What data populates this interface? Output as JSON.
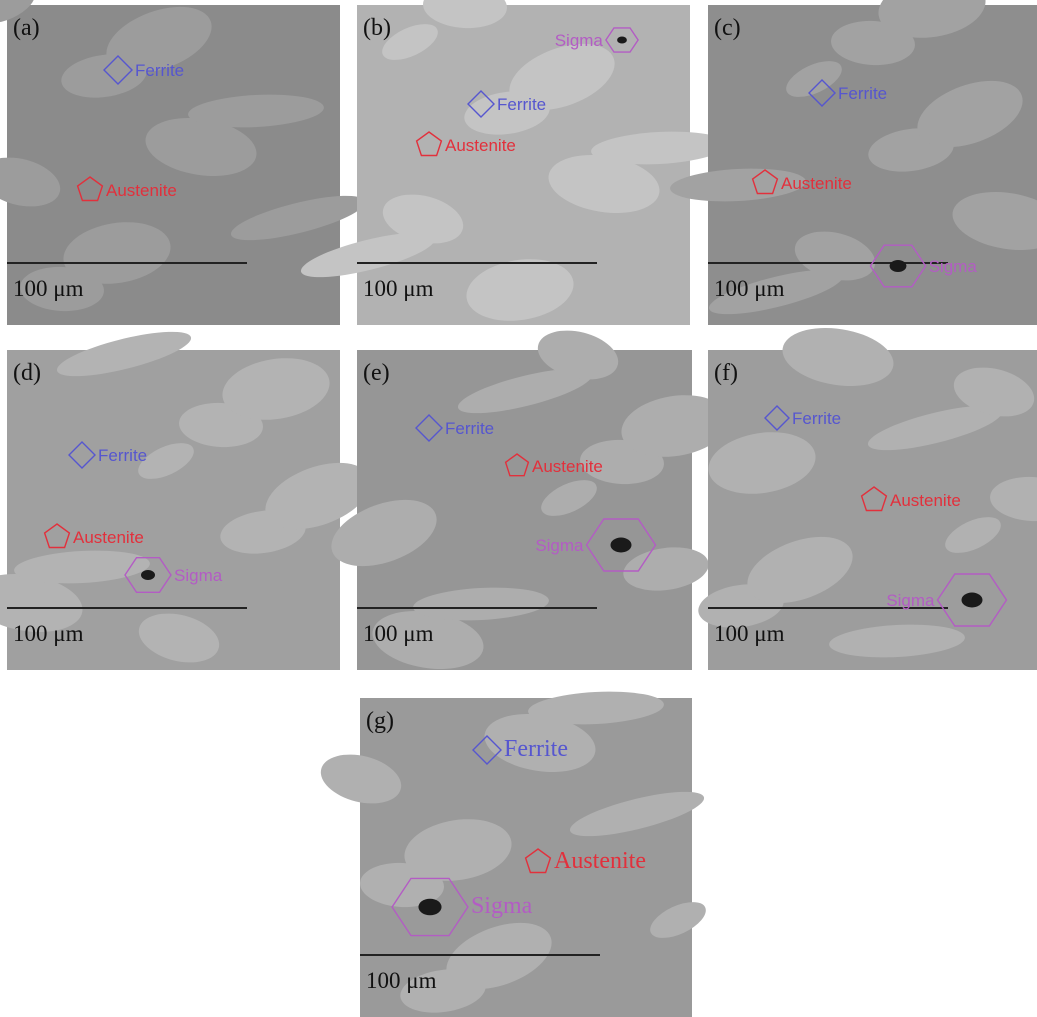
{
  "panels": [
    {
      "label": "(a)",
      "scale_bar": "100 μm",
      "phases": [
        {
          "name": "Ferrite"
        },
        {
          "name": "Austenite"
        }
      ]
    },
    {
      "label": "(b)",
      "scale_bar": "100 μm",
      "phases": [
        {
          "name": "Sigma"
        },
        {
          "name": "Ferrite"
        },
        {
          "name": "Austenite"
        }
      ]
    },
    {
      "label": "(c)",
      "scale_bar": "100 μm",
      "phases": [
        {
          "name": "Ferrite"
        },
        {
          "name": "Austenite"
        },
        {
          "name": "Sigma"
        }
      ]
    },
    {
      "label": "(d)",
      "scale_bar": "100 μm",
      "phases": [
        {
          "name": "Ferrite"
        },
        {
          "name": "Austenite"
        },
        {
          "name": "Sigma"
        }
      ]
    },
    {
      "label": "(e)",
      "scale_bar": "100 μm",
      "phases": [
        {
          "name": "Ferrite"
        },
        {
          "name": "Austenite"
        },
        {
          "name": "Sigma"
        }
      ]
    },
    {
      "label": "(f)",
      "scale_bar": "100 μm",
      "phases": [
        {
          "name": "Ferrite"
        },
        {
          "name": "Austenite"
        },
        {
          "name": "Sigma"
        }
      ]
    },
    {
      "label": "(g)",
      "scale_bar": "100 μm",
      "phases": [
        {
          "name": "Ferrite"
        },
        {
          "name": "Austenite"
        },
        {
          "name": "Sigma"
        }
      ]
    }
  ]
}
